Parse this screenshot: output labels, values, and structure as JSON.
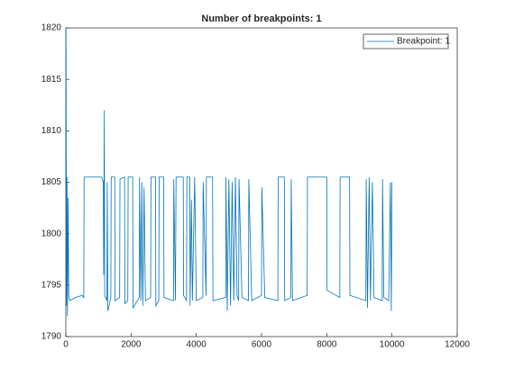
{
  "chart_data": {
    "type": "line",
    "title": "Number of breakpoints: 1",
    "x": [
      0,
      5,
      10,
      20,
      35,
      50,
      70,
      90,
      120,
      300,
      500,
      550,
      560,
      1100,
      1150,
      1160,
      1180,
      1190,
      1260,
      1270,
      1290,
      1380,
      1390,
      1500,
      1510,
      1650,
      1660,
      1800,
      1810,
      1900,
      1910,
      2050,
      2060,
      2250,
      2260,
      2300,
      2330,
      2360,
      2400,
      2440,
      2600,
      2610,
      2750,
      2760,
      2850,
      2860,
      3000,
      3010,
      3300,
      3310,
      3360,
      3380,
      3600,
      3610,
      3700,
      3710,
      3800,
      3810,
      3850,
      3880,
      3950,
      4000,
      4200,
      4210,
      4300,
      4310,
      4500,
      4510,
      4900,
      4910,
      4950,
      5000,
      5050,
      5100,
      5150,
      5200,
      5250,
      5300,
      5310,
      5400,
      5600,
      5610,
      5700,
      6000,
      6010,
      6100,
      6500,
      6510,
      6700,
      6710,
      6900,
      6910,
      6950,
      7400,
      7410,
      8000,
      8010,
      8400,
      8410,
      8700,
      8710,
      9200,
      9210,
      9250,
      9300,
      9340,
      9400,
      9450,
      9700,
      9710,
      9750,
      9900,
      9950,
      9980,
      10000
    ],
    "series": [
      {
        "name": "Breakpoint: 1",
        "color": "#0072bd",
        "values": [
          1805,
          1820,
          1812,
          1793,
          1805.5,
          1792,
          1803.5,
          1794,
          1793.5,
          1793.8,
          1794,
          1793.8,
          1805.5,
          1805.5,
          1805,
          1796,
          1812,
          1794,
          1793.5,
          1805,
          1792.5,
          1793.8,
          1805.5,
          1805.5,
          1793.5,
          1793.8,
          1805.3,
          1805.5,
          1793.2,
          1793.5,
          1805.5,
          1805.5,
          1792.8,
          1793.8,
          1805.5,
          1793.5,
          1805,
          1793,
          1804.5,
          1793.5,
          1793.8,
          1805.5,
          1805.5,
          1793,
          1793.5,
          1805.5,
          1805.5,
          1793.8,
          1793.5,
          1805.3,
          1793.5,
          1805.5,
          1805.5,
          1794,
          1793.5,
          1805.5,
          1805.5,
          1793,
          1803.3,
          1793.5,
          1805.5,
          1793.5,
          1793.8,
          1805,
          1794,
          1805.5,
          1805.5,
          1793.5,
          1793.8,
          1805.5,
          1792.5,
          1805.3,
          1793,
          1805,
          1793.5,
          1805.5,
          1794,
          1793.5,
          1805.3,
          1793.8,
          1793.5,
          1805.3,
          1793.5,
          1794,
          1804.5,
          1793.8,
          1793.5,
          1805.5,
          1805.5,
          1793.5,
          1793.8,
          1805.3,
          1793.5,
          1794,
          1805.5,
          1805.5,
          1794.5,
          1793.8,
          1805.5,
          1805.5,
          1794,
          1793.5,
          1805.3,
          1792.8,
          1805.5,
          1793.5,
          1805,
          1793.8,
          1793.5,
          1805.3,
          1793.8,
          1793.5,
          1805,
          1792.5,
          1805
        ]
      }
    ],
    "xlim": [
      0,
      12000
    ],
    "xticks": [
      0,
      2000,
      4000,
      6000,
      8000,
      10000,
      12000
    ],
    "ylim": [
      1790,
      1820
    ],
    "yticks": [
      1790,
      1795,
      1800,
      1805,
      1810,
      1815,
      1820
    ],
    "grid": false,
    "legend": "northeast"
  }
}
